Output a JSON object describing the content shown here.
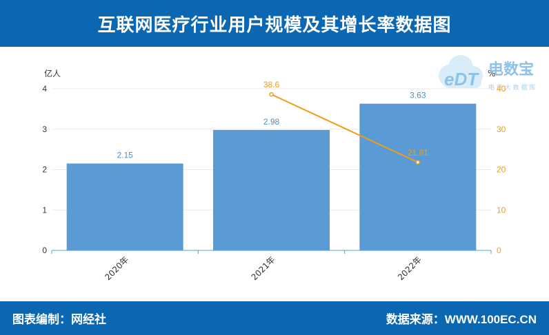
{
  "header": {
    "title": "互联网医疗行业用户规模及其增长率数据图"
  },
  "footer": {
    "left_text": "图表编制：网经社",
    "right_text": "数据来源：WWW.100EC.CN"
  },
  "logo": {
    "brand": "电数宝",
    "mark": "eDT",
    "tagline": "电 商 大 数 据 库"
  },
  "colors": {
    "header_bg": "#0b67b2",
    "bar": "#5b9bd5",
    "line": "#f39c12",
    "bar_label": "#4a90c2"
  },
  "chart_data": {
    "type": "bar",
    "categories": [
      "2020年",
      "2021年",
      "2022年"
    ],
    "series": [
      {
        "name": "",
        "type": "bar",
        "axis": "left",
        "values": [
          2.15,
          2.98,
          3.63
        ]
      },
      {
        "name": "",
        "type": "line",
        "axis": "right",
        "values": [
          null,
          38.6,
          21.81
        ]
      }
    ],
    "ylabel": "亿人",
    "ylim": [
      0,
      4
    ],
    "yticks": [
      0,
      1,
      2,
      3,
      4
    ],
    "y2label": "%",
    "y2lim": [
      0,
      40
    ],
    "y2ticks": [
      0,
      10,
      20,
      30,
      40
    ],
    "grid": true
  }
}
